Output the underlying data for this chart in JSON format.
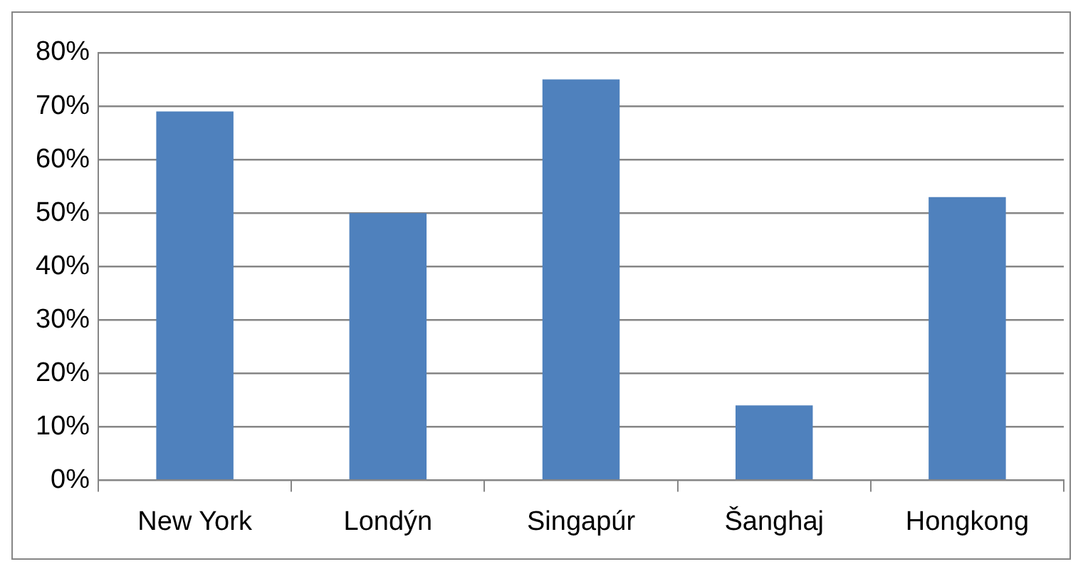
{
  "chart_data": {
    "type": "bar",
    "categories": [
      "New York",
      "Londýn",
      "Singapúr",
      "Šanghaj",
      "Hongkong"
    ],
    "values": [
      69,
      50,
      75,
      14,
      53
    ],
    "color": "#4f81bd",
    "ylim": [
      0,
      80
    ],
    "yticks": [
      {
        "value": 0,
        "label": "0%"
      },
      {
        "value": 10,
        "label": "10%"
      },
      {
        "value": 20,
        "label": "20%"
      },
      {
        "value": 30,
        "label": "30%"
      },
      {
        "value": 40,
        "label": "40%"
      },
      {
        "value": 50,
        "label": "50%"
      },
      {
        "value": 60,
        "label": "60%"
      },
      {
        "value": 70,
        "label": "70%"
      },
      {
        "value": 80,
        "label": "80%"
      }
    ],
    "grid": "y",
    "legend": false
  }
}
